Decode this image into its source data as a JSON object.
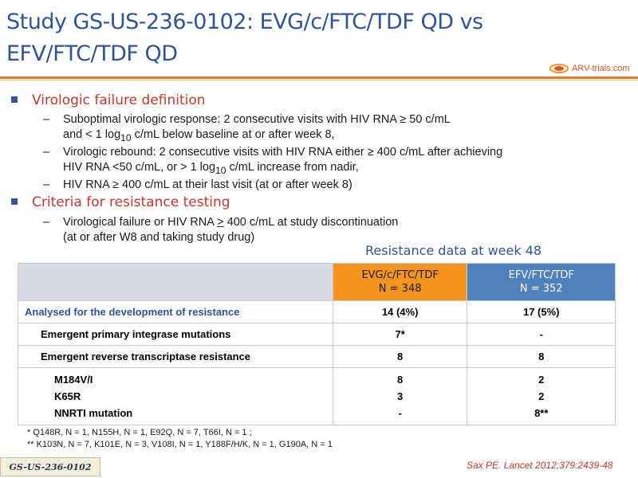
{
  "title": "Study GS-US-236-0102: EVG/c/FTC/TDF QD vs EFV/FTC/TDF QD",
  "logo_text": "ARV-trials.com",
  "bullets": [
    {
      "heading": "Virologic failure definition",
      "items": [
        {
          "line1": "Suboptimal virologic response: 2 consecutive visits with HIV RNA ≥ 50 c/mL",
          "line2_pre": "and < 1 log",
          "line2_sub": "10",
          "line2_post": " c/mL below baseline at or after week 8,"
        },
        {
          "line1": "Virologic rebound: 2 consecutive visits with HIV RNA either ≥ 400 c/mL after achieving",
          "line2_pre": "HIV RNA <50 c/mL, or > 1 log",
          "line2_sub": "10",
          "line2_post": " c/mL increase from nadir,"
        },
        {
          "line1": "HIV RNA ≥ 400 c/mL at their last visit (at or after week 8)"
        }
      ]
    },
    {
      "heading": "Criteria for resistance testing",
      "items": [
        {
          "line1_pre": "Virological failure or HIV RNA ",
          "line1_u": ">",
          "line1_post": " 400 c/mL at study discontinuation",
          "line2": "(at or after W8 and taking study drug)"
        }
      ]
    }
  ],
  "table": {
    "title": "Resistance data at week 48",
    "col_evg": {
      "name": "EVG/c/FTC/TDF",
      "n": "N = 348",
      "color": "#f7941d"
    },
    "col_efv": {
      "name": "EFV/FTC/TDF",
      "n": "N = 352",
      "color": "#4f81bd"
    },
    "rows": [
      {
        "label": "Analysed for the development of resistance",
        "evg": "14 (4%)",
        "efv": "17 (5%)"
      },
      {
        "label": "Emergent  primary integrase mutations",
        "evg": "7*",
        "efv": "-"
      },
      {
        "label": "Emergent reverse transcriptase resistance",
        "evg": "8",
        "efv": "8"
      }
    ],
    "sub_rows": [
      {
        "label": "M184V/I",
        "evg": "8",
        "efv": "2"
      },
      {
        "label": "K65R",
        "evg": "3",
        "efv": "2"
      },
      {
        "label": "NNRTI mutation",
        "evg": "-",
        "efv": "8**"
      }
    ]
  },
  "footnotes": [
    "* Q148R, N = 1, N155H, N = 1,  E92Q, N = 7, T66I, N = 1 ;",
    "** K103N, N = 7, K101E, N = 3, V108I, N = 1, Y188F/H/K, N = 1, G190A, N = 1"
  ],
  "study_tag": "GS-US-236-0102",
  "reference": "Sax PE. Lancet 2012;379:2439-48"
}
